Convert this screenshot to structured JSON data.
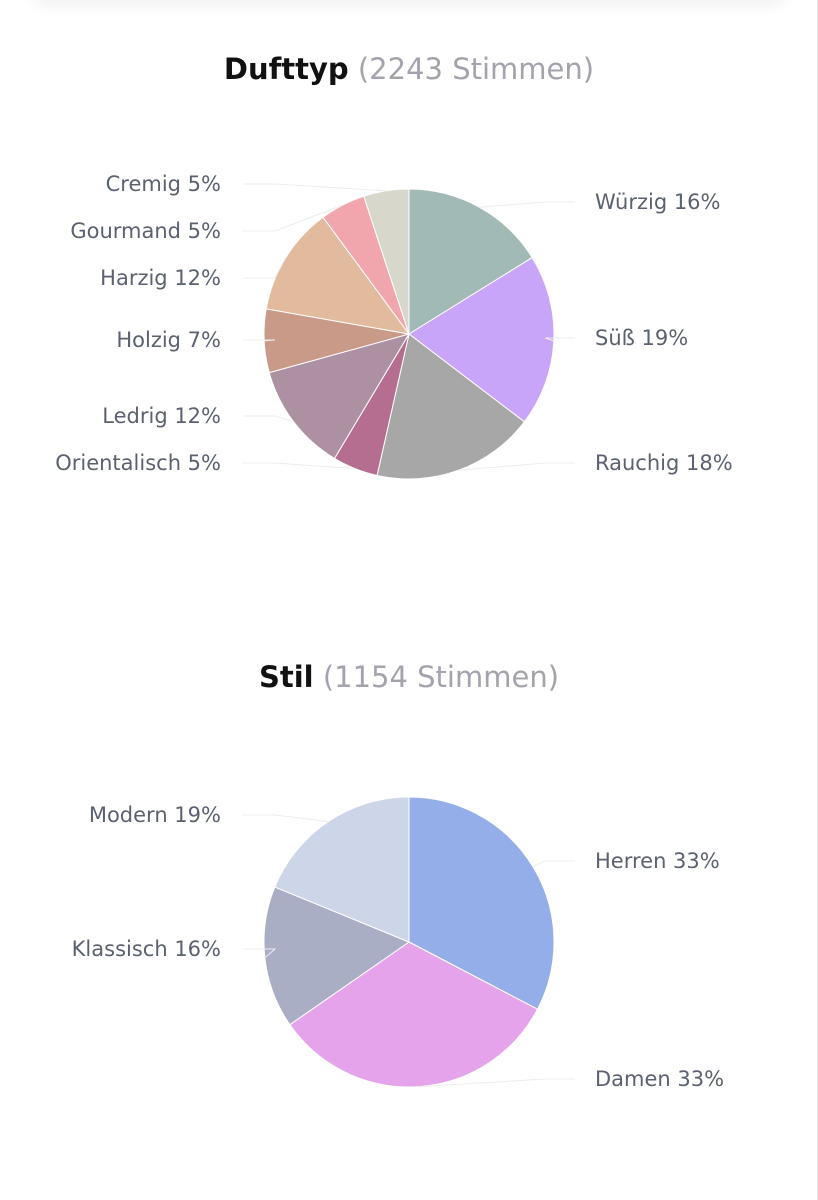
{
  "chart_data": [
    {
      "type": "pie",
      "title": "Dufttyp",
      "subtitle": "(2243 Stimmen)",
      "categories": [
        "Würzig",
        "Süß",
        "Rauchig",
        "Orientalisch",
        "Ledrig",
        "Holzig",
        "Harzig",
        "Gourmand",
        "Cremig"
      ],
      "values": [
        16,
        19,
        18,
        5,
        12,
        7,
        12,
        5,
        5
      ],
      "labels": [
        "Würzig 16%",
        "Süß 19%",
        "Rauchig 18%",
        "Orientalisch 5%",
        "Ledrig 12%",
        "Holzig 7%",
        "Harzig 12%",
        "Gourmand 5%",
        "Cremig 5%"
      ],
      "colors": [
        "#a1bab6",
        "#c9a5fa",
        "#a7a7a7",
        "#b56d90",
        "#ae90a3",
        "#c99a88",
        "#e2bb9e",
        "#f0a6ac",
        "#d7d8cb"
      ]
    },
    {
      "type": "pie",
      "title": "Stil",
      "subtitle": "(1154 Stimmen)",
      "categories": [
        "Herren",
        "Damen",
        "Klassisch",
        "Modern"
      ],
      "values": [
        33,
        33,
        16,
        19
      ],
      "labels": [
        "Herren 33%",
        "Damen 33%",
        "Klassisch 16%",
        "Modern 19%"
      ],
      "colors": [
        "#93aee8",
        "#e5a3ec",
        "#a9aec5",
        "#cdd5e8"
      ]
    }
  ]
}
